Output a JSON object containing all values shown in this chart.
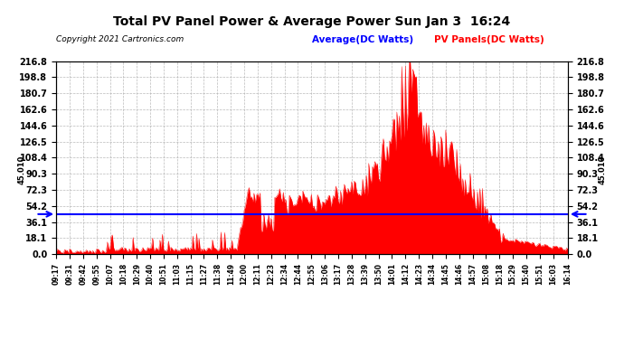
{
  "title": "Total PV Panel Power & Average Power Sun Jan 3  16:24",
  "copyright": "Copyright 2021 Cartronics.com",
  "legend_avg": "Average(DC Watts)",
  "legend_pv": "PV Panels(DC Watts)",
  "avg_value": 45.01,
  "y_max": 216.8,
  "y_min": 0.0,
  "yticks": [
    0.0,
    18.1,
    36.1,
    54.2,
    72.3,
    90.3,
    108.4,
    126.5,
    144.6,
    162.6,
    180.7,
    198.8,
    216.8
  ],
  "x_labels": [
    "09:17",
    "09:31",
    "09:42",
    "09:55",
    "10:07",
    "10:18",
    "10:29",
    "10:40",
    "10:51",
    "11:03",
    "11:15",
    "11:27",
    "11:38",
    "11:49",
    "12:00",
    "12:11",
    "12:23",
    "12:34",
    "12:44",
    "12:55",
    "13:06",
    "13:17",
    "13:28",
    "13:39",
    "13:50",
    "14:01",
    "14:12",
    "14:23",
    "14:34",
    "14:45",
    "14:46",
    "14:57",
    "15:08",
    "15:18",
    "15:29",
    "15:40",
    "15:51",
    "16:03",
    "16:14"
  ],
  "bar_color": "#ff0000",
  "avg_line_color": "#0000ff",
  "background_color": "#ffffff",
  "grid_color": "#aaaaaa",
  "title_color": "#000000",
  "label_color_avg": "#0000ff",
  "label_color_pv": "#ff0000"
}
